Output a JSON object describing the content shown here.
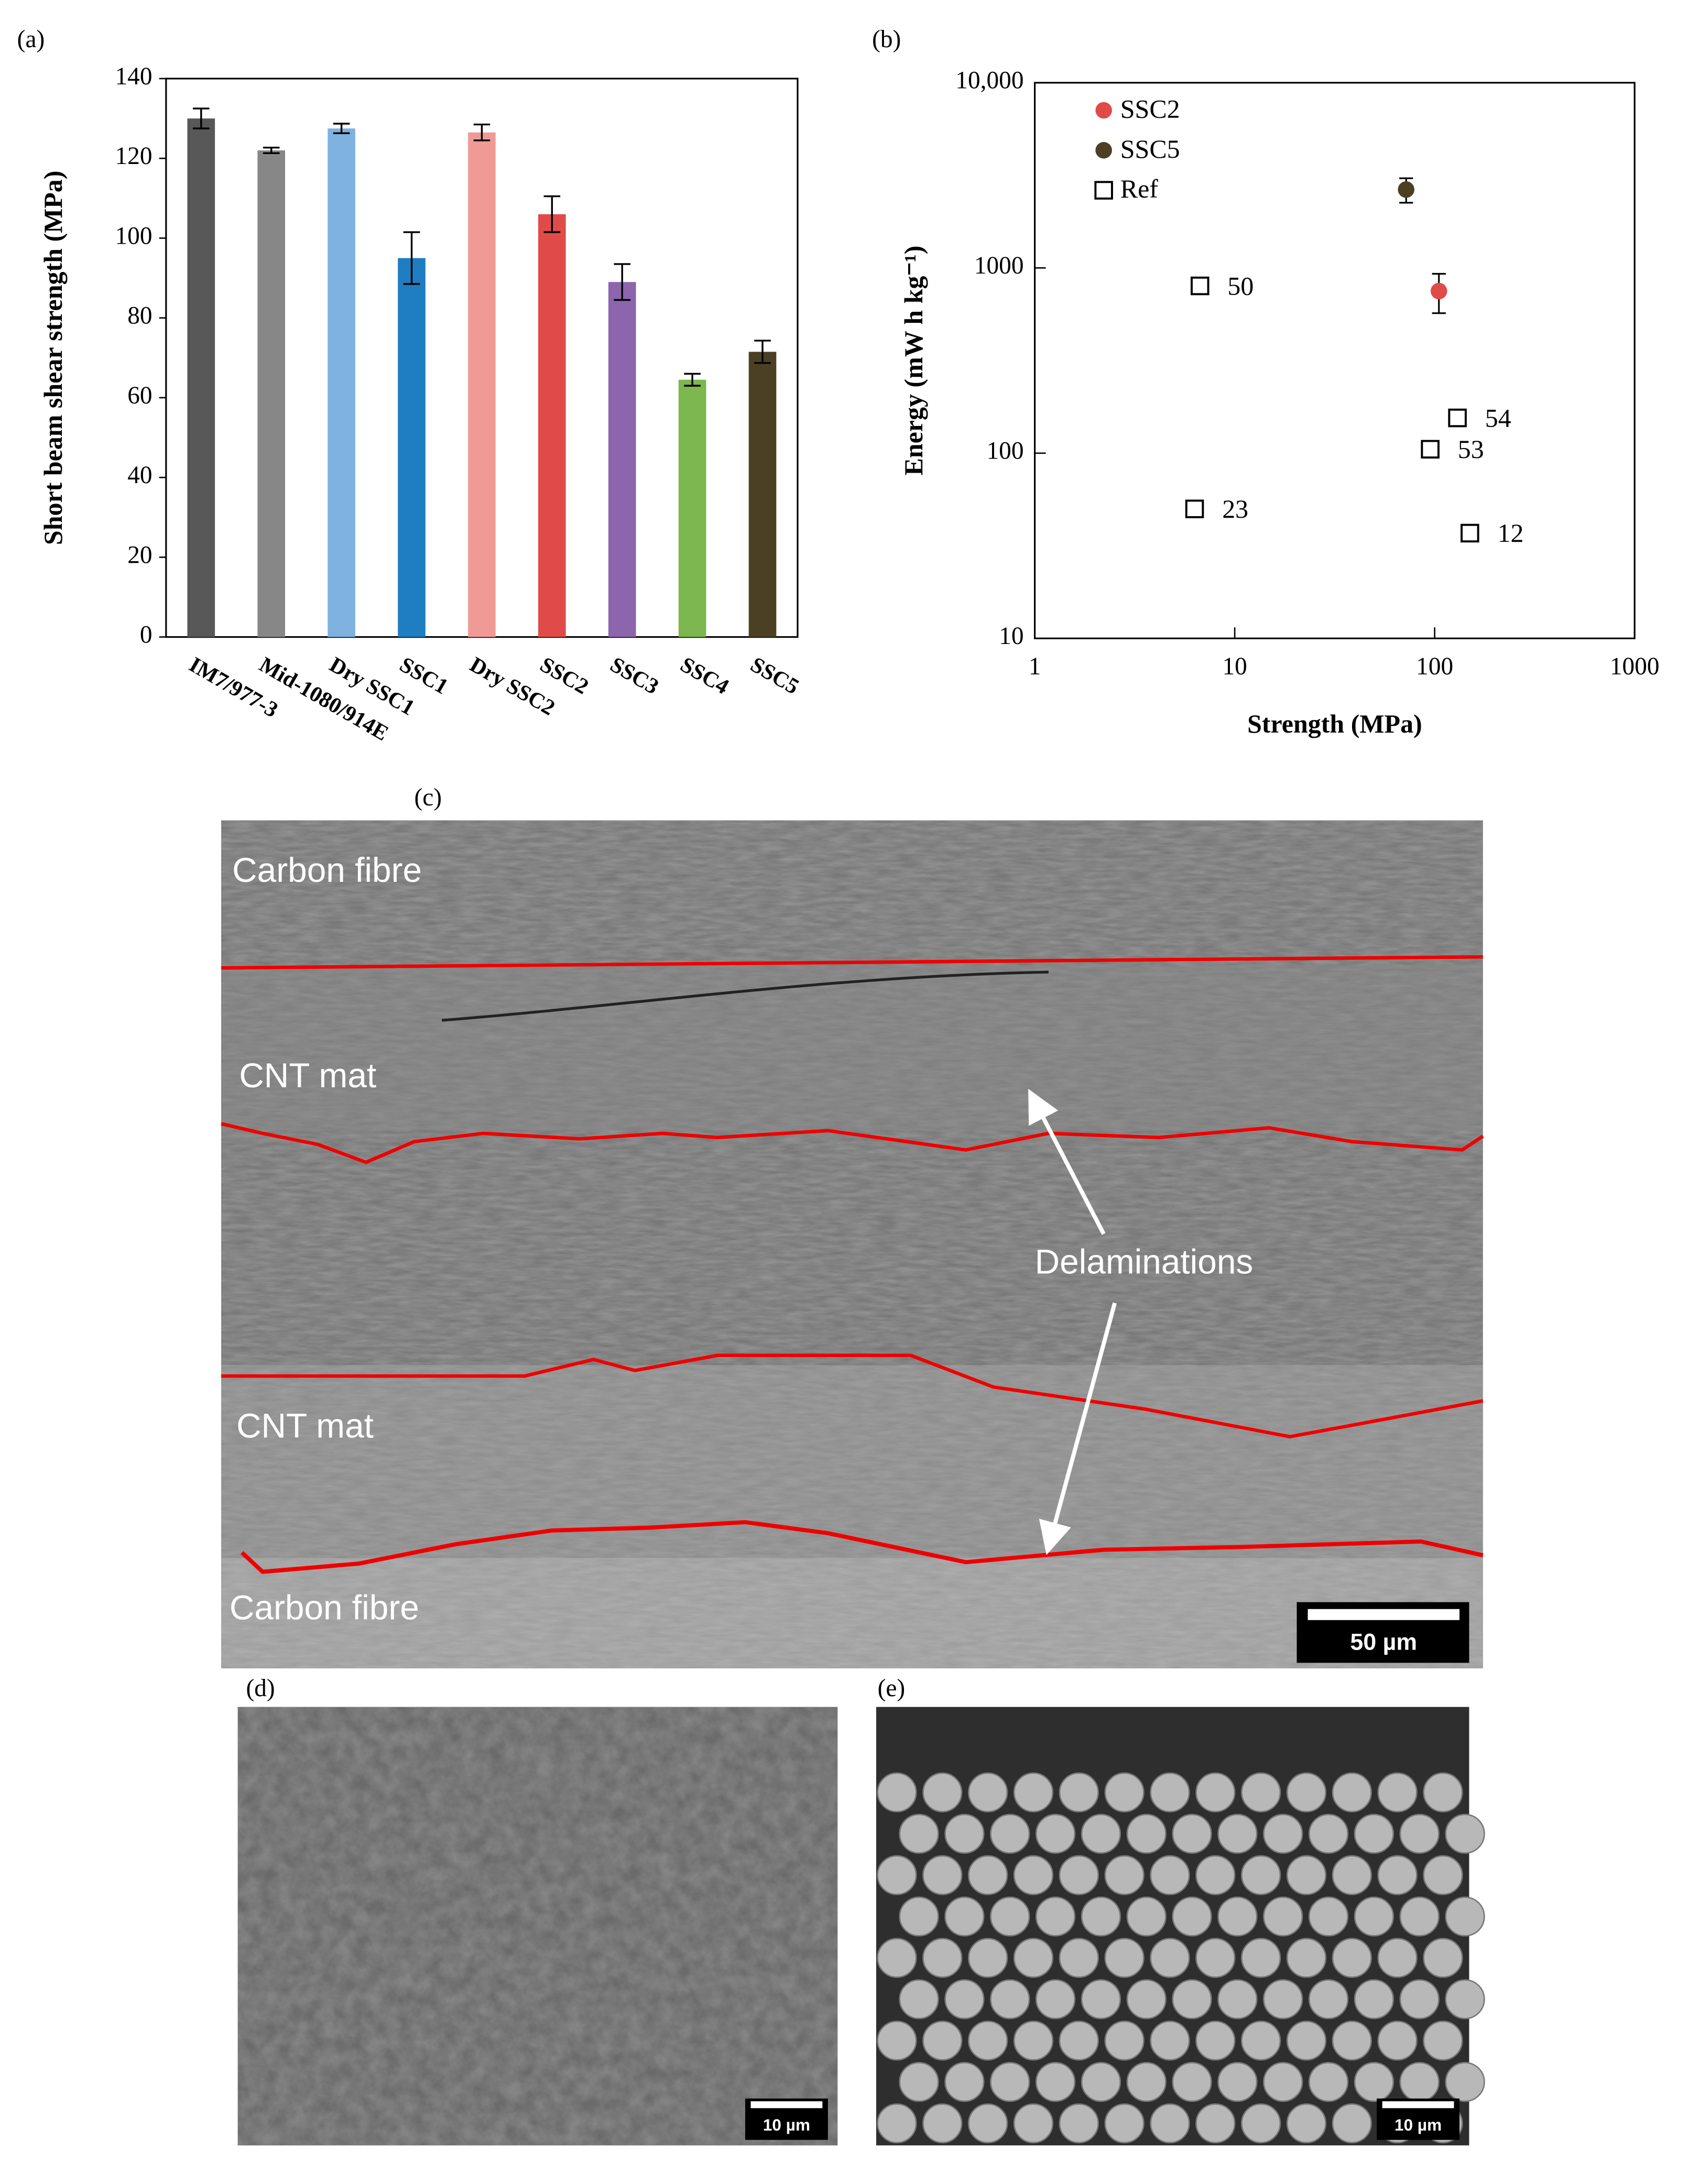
{
  "panel_labels": [
    "(a)",
    "(b)",
    "(c)",
    "(d)",
    "(e)"
  ],
  "chart_data": [
    {
      "type": "bar",
      "y_label": "Short beam shear strength (MPa)",
      "categories": [
        "IM7/977-3",
        "Mid-1080/914E",
        "Dry SSC1",
        "SSC1",
        "Dry SSC2",
        "SSC2",
        "SSC3",
        "SSC4",
        "SSC5"
      ],
      "values": [
        130,
        122,
        127.5,
        95,
        126.5,
        106,
        89,
        64.5,
        71.5
      ],
      "errors": [
        2.5,
        0.7,
        1.2,
        6.5,
        2,
        4.5,
        4.5,
        1.5,
        2.8
      ],
      "colors": [
        "#585858",
        "#878787",
        "#7fb2de",
        "#1f7ec1",
        "#f09a96",
        "#e04b49",
        "#8c65ac",
        "#7cb74f",
        "#4b4024"
      ],
      "ylim": [
        0,
        140
      ],
      "yticks": [
        0,
        20,
        40,
        60,
        80,
        100,
        120,
        140
      ]
    },
    {
      "type": "scatter",
      "x_label": "Strength (MPa)",
      "y_label": "Energy (mW h kg⁻¹)",
      "log_x": true,
      "log_y": true,
      "legend": "top-left",
      "xlim": [
        1,
        1000
      ],
      "xticks": [
        1,
        10,
        100,
        1000
      ],
      "ylim": [
        10,
        10000
      ],
      "yticks": [
        10,
        100,
        1000,
        {
          "value": 10000,
          "label": "10,000"
        }
      ],
      "series": [
        {
          "name": "SSC2",
          "color": "#e04b49",
          "marker": "circle",
          "x": [
            105
          ],
          "values": [
            750
          ],
          "errors": [
            180
          ]
        },
        {
          "name": "SSC5",
          "color": "#4b4024",
          "marker": "circle",
          "x": [
            72
          ],
          "values": [
            2650
          ],
          "errors": [
            400
          ]
        },
        {
          "name": "Ref",
          "color": "#000000",
          "marker": "square",
          "x": [
            6.7,
            6.3,
            130,
            95,
            150
          ],
          "values": [
            800,
            50,
            155,
            105,
            37
          ],
          "point_labels": [
            "50",
            "23",
            "54",
            "53",
            "12"
          ]
        }
      ]
    }
  ],
  "images": {
    "c": {
      "labels": [
        "Carbon fibre",
        "CNT mat",
        "Delaminations",
        "CNT mat",
        "Carbon fibre"
      ],
      "scale_bar": "50 µm"
    },
    "d": {
      "scale_bar": "10 µm"
    },
    "e": {
      "scale_bar": "10 µm"
    }
  }
}
